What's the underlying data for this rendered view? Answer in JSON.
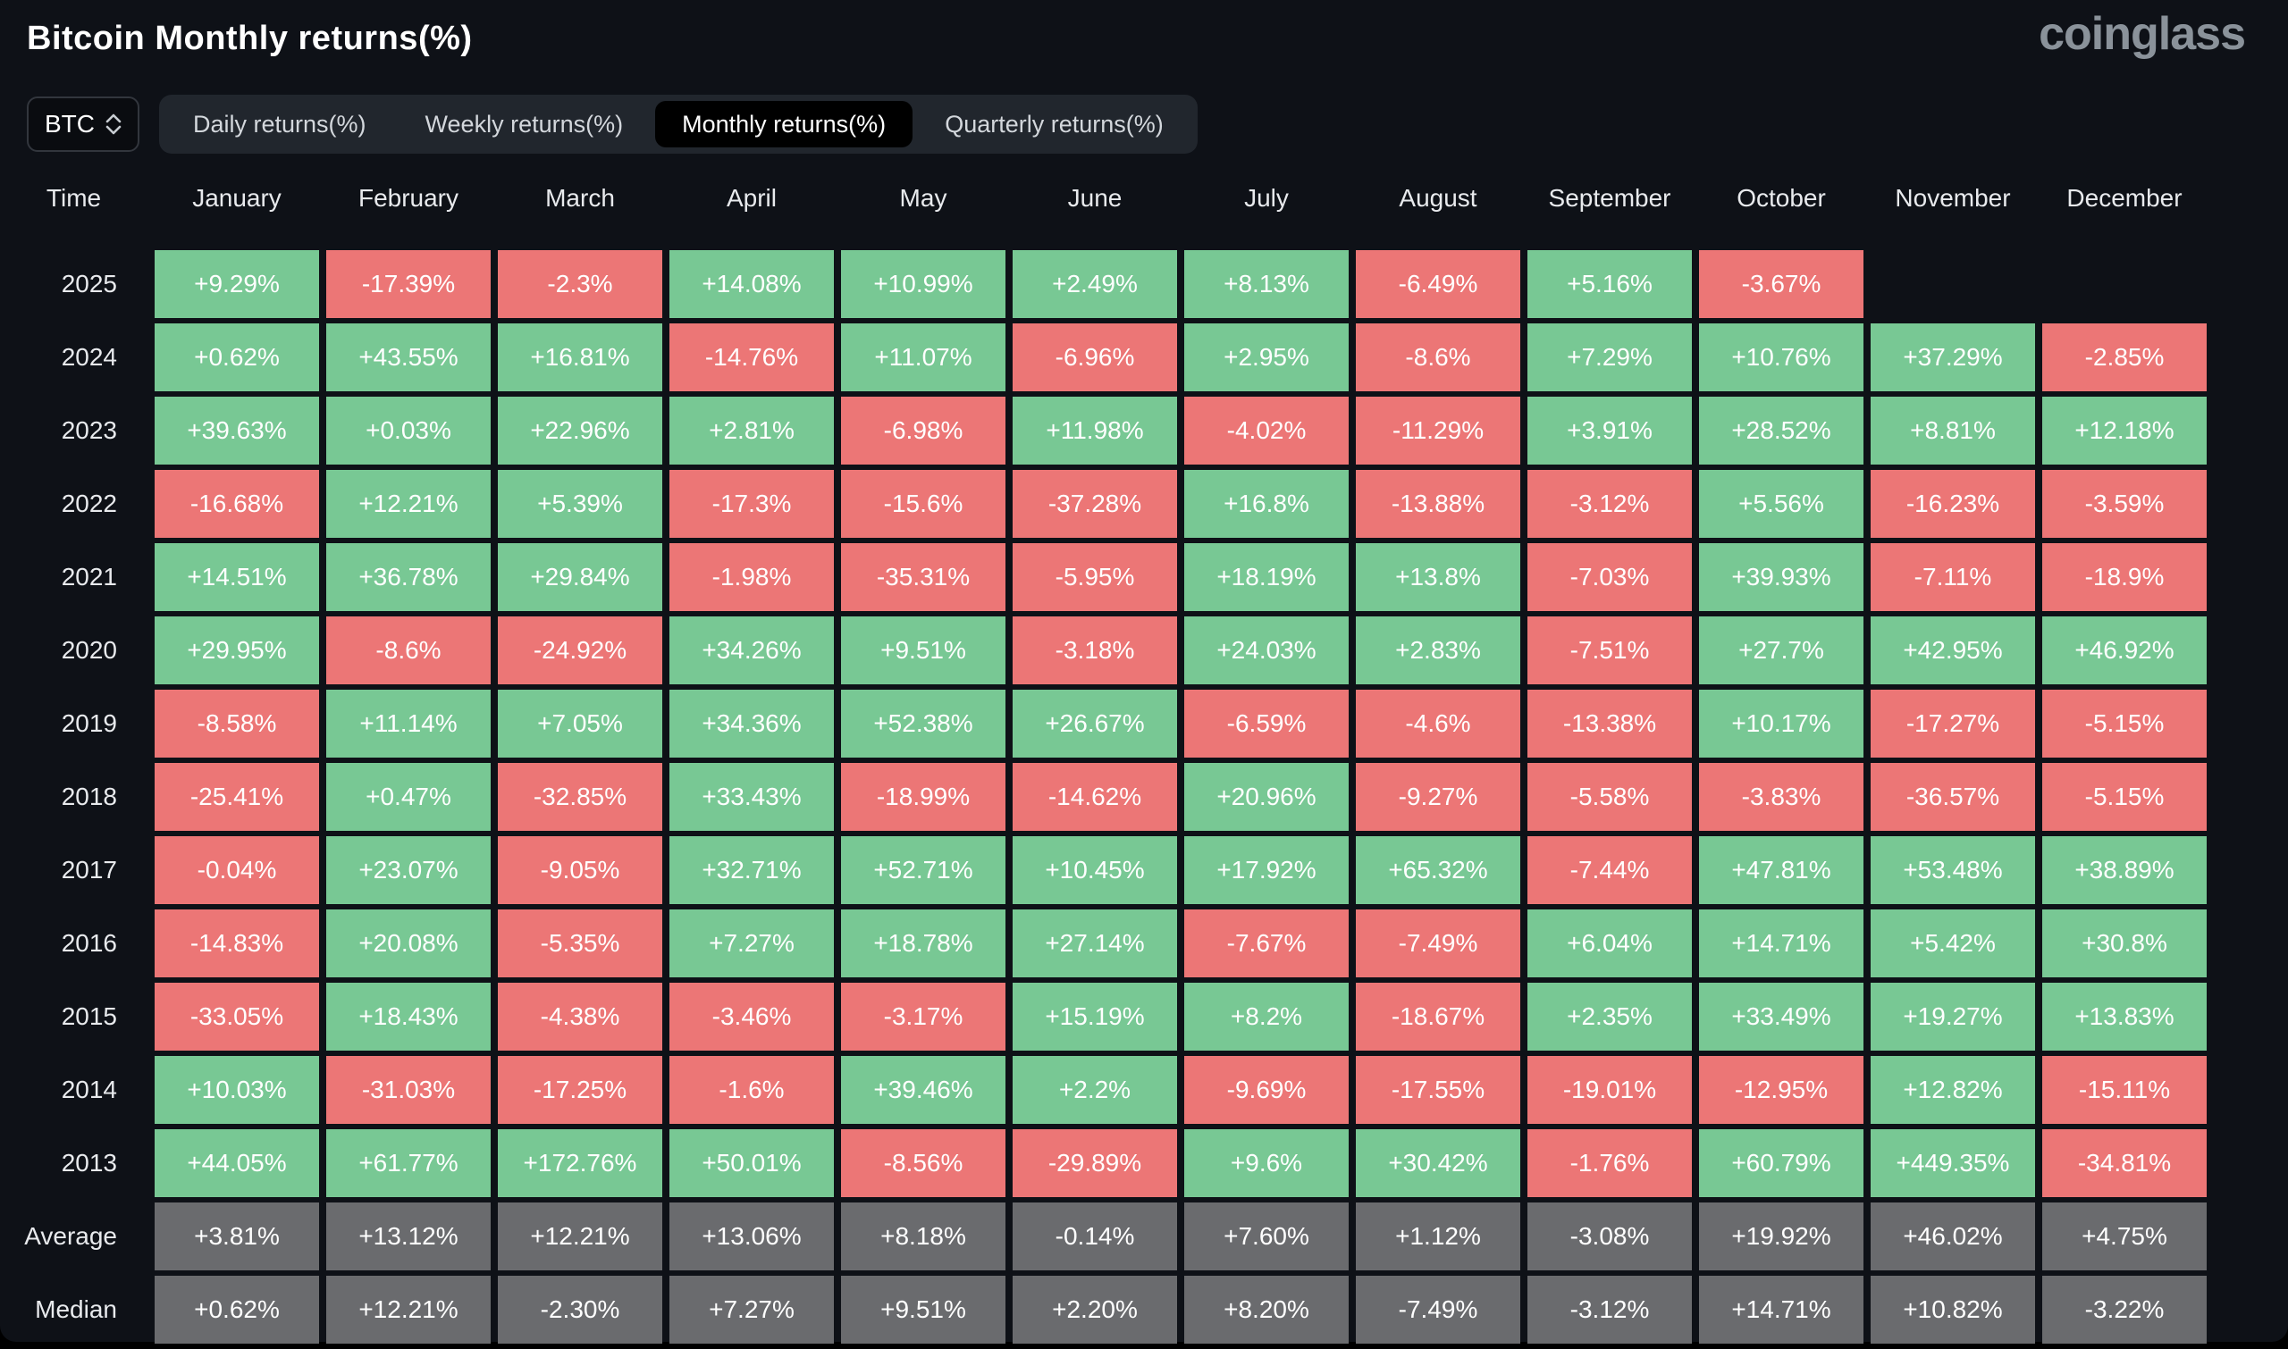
{
  "header": {
    "title": "Bitcoin Monthly returns(%)",
    "logo_text": "coinglass"
  },
  "controls": {
    "symbol": "BTC",
    "tabs": [
      {
        "label": "Daily returns(%)",
        "active": false
      },
      {
        "label": "Weekly returns(%)",
        "active": false
      },
      {
        "label": "Monthly returns(%)",
        "active": true
      },
      {
        "label": "Quarterly returns(%)",
        "active": false
      }
    ]
  },
  "chart_data": {
    "type": "heatmap",
    "title": "Bitcoin Monthly returns(%)",
    "columns": [
      "Time",
      "January",
      "February",
      "March",
      "April",
      "May",
      "June",
      "July",
      "August",
      "September",
      "October",
      "November",
      "December"
    ],
    "rows": [
      {
        "label": "2025",
        "type": "year",
        "values": [
          "+9.29%",
          "-17.39%",
          "-2.3%",
          "+14.08%",
          "+10.99%",
          "+2.49%",
          "+8.13%",
          "-6.49%",
          "+5.16%",
          "-3.67%",
          "",
          ""
        ]
      },
      {
        "label": "2024",
        "type": "year",
        "values": [
          "+0.62%",
          "+43.55%",
          "+16.81%",
          "-14.76%",
          "+11.07%",
          "-6.96%",
          "+2.95%",
          "-8.6%",
          "+7.29%",
          "+10.76%",
          "+37.29%",
          "-2.85%"
        ]
      },
      {
        "label": "2023",
        "type": "year",
        "values": [
          "+39.63%",
          "+0.03%",
          "+22.96%",
          "+2.81%",
          "-6.98%",
          "+11.98%",
          "-4.02%",
          "-11.29%",
          "+3.91%",
          "+28.52%",
          "+8.81%",
          "+12.18%"
        ]
      },
      {
        "label": "2022",
        "type": "year",
        "values": [
          "-16.68%",
          "+12.21%",
          "+5.39%",
          "-17.3%",
          "-15.6%",
          "-37.28%",
          "+16.8%",
          "-13.88%",
          "-3.12%",
          "+5.56%",
          "-16.23%",
          "-3.59%"
        ]
      },
      {
        "label": "2021",
        "type": "year",
        "values": [
          "+14.51%",
          "+36.78%",
          "+29.84%",
          "-1.98%",
          "-35.31%",
          "-5.95%",
          "+18.19%",
          "+13.8%",
          "-7.03%",
          "+39.93%",
          "-7.11%",
          "-18.9%"
        ]
      },
      {
        "label": "2020",
        "type": "year",
        "values": [
          "+29.95%",
          "-8.6%",
          "-24.92%",
          "+34.26%",
          "+9.51%",
          "-3.18%",
          "+24.03%",
          "+2.83%",
          "-7.51%",
          "+27.7%",
          "+42.95%",
          "+46.92%"
        ]
      },
      {
        "label": "2019",
        "type": "year",
        "values": [
          "-8.58%",
          "+11.14%",
          "+7.05%",
          "+34.36%",
          "+52.38%",
          "+26.67%",
          "-6.59%",
          "-4.6%",
          "-13.38%",
          "+10.17%",
          "-17.27%",
          "-5.15%"
        ]
      },
      {
        "label": "2018",
        "type": "year",
        "values": [
          "-25.41%",
          "+0.47%",
          "-32.85%",
          "+33.43%",
          "-18.99%",
          "-14.62%",
          "+20.96%",
          "-9.27%",
          "-5.58%",
          "-3.83%",
          "-36.57%",
          "-5.15%"
        ]
      },
      {
        "label": "2017",
        "type": "year",
        "values": [
          "-0.04%",
          "+23.07%",
          "-9.05%",
          "+32.71%",
          "+52.71%",
          "+10.45%",
          "+17.92%",
          "+65.32%",
          "-7.44%",
          "+47.81%",
          "+53.48%",
          "+38.89%"
        ]
      },
      {
        "label": "2016",
        "type": "year",
        "values": [
          "-14.83%",
          "+20.08%",
          "-5.35%",
          "+7.27%",
          "+18.78%",
          "+27.14%",
          "-7.67%",
          "-7.49%",
          "+6.04%",
          "+14.71%",
          "+5.42%",
          "+30.8%"
        ]
      },
      {
        "label": "2015",
        "type": "year",
        "values": [
          "-33.05%",
          "+18.43%",
          "-4.38%",
          "-3.46%",
          "-3.17%",
          "+15.19%",
          "+8.2%",
          "-18.67%",
          "+2.35%",
          "+33.49%",
          "+19.27%",
          "+13.83%"
        ]
      },
      {
        "label": "2014",
        "type": "year",
        "values": [
          "+10.03%",
          "-31.03%",
          "-17.25%",
          "-1.6%",
          "+39.46%",
          "+2.2%",
          "-9.69%",
          "-17.55%",
          "-19.01%",
          "-12.95%",
          "+12.82%",
          "-15.11%"
        ]
      },
      {
        "label": "2013",
        "type": "year",
        "values": [
          "+44.05%",
          "+61.77%",
          "+172.76%",
          "+50.01%",
          "-8.56%",
          "-29.89%",
          "+9.6%",
          "+30.42%",
          "-1.76%",
          "+60.79%",
          "+449.35%",
          "-34.81%"
        ]
      },
      {
        "label": "Average",
        "type": "summary",
        "values": [
          "+3.81%",
          "+13.12%",
          "+12.21%",
          "+13.06%",
          "+8.18%",
          "-0.14%",
          "+7.60%",
          "+1.12%",
          "-3.08%",
          "+19.92%",
          "+46.02%",
          "+4.75%"
        ]
      },
      {
        "label": "Median",
        "type": "summary",
        "values": [
          "+0.62%",
          "+12.21%",
          "-2.30%",
          "+7.27%",
          "+9.51%",
          "+2.20%",
          "+8.20%",
          "-7.49%",
          "-3.12%",
          "+14.71%",
          "+10.82%",
          "-3.22%"
        ]
      }
    ],
    "colors": {
      "positive": "#78c894",
      "negative": "#ec7676",
      "summary": "#6a6b6e",
      "panel_background": "#0e1117",
      "active_tab_background": "#000000"
    }
  }
}
